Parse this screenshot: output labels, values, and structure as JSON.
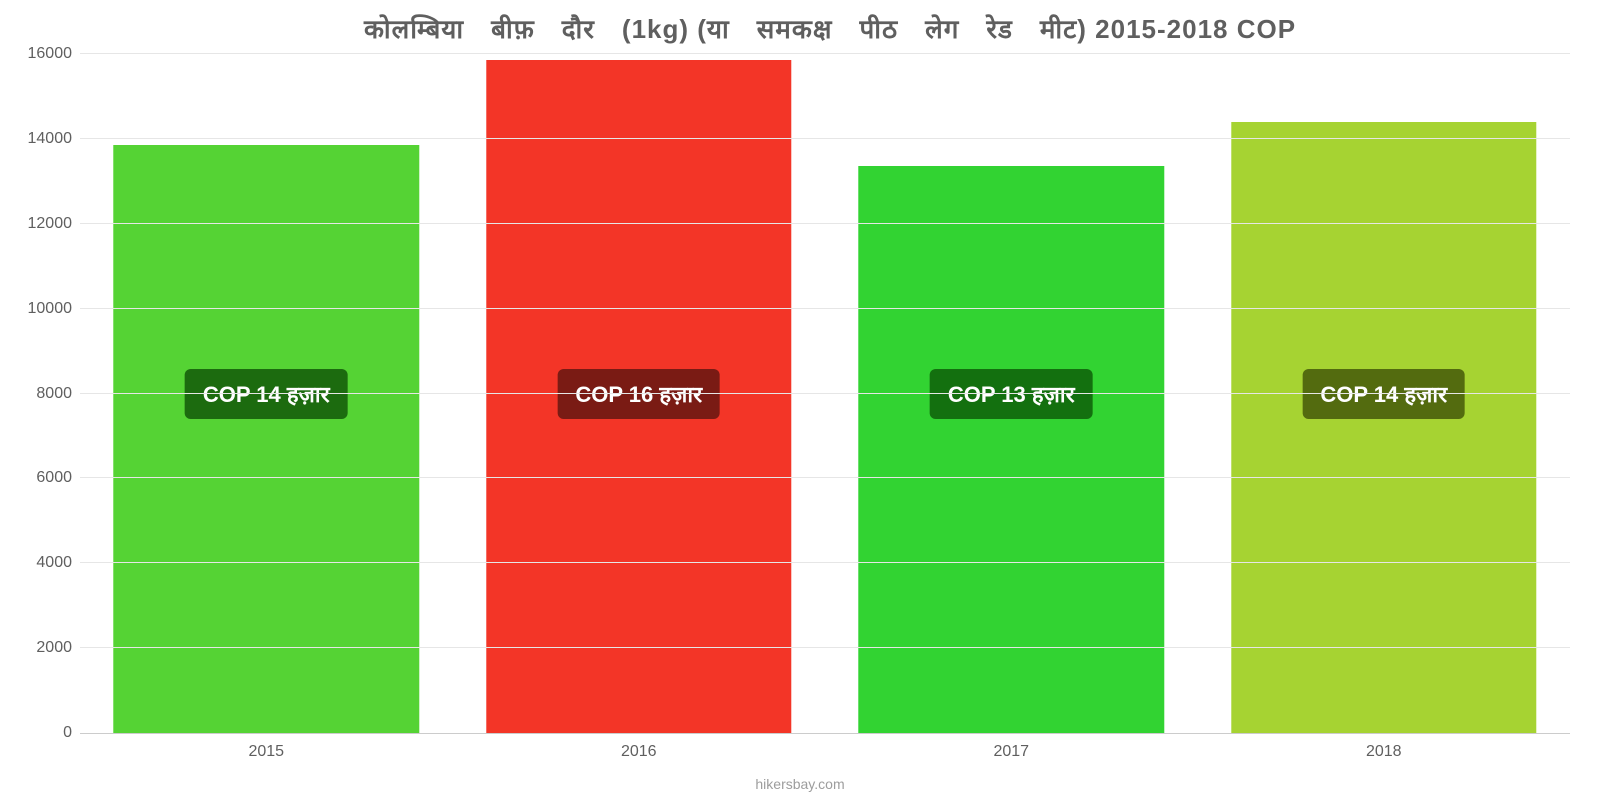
{
  "chart": {
    "type": "bar",
    "title": "कोलम्बिया बीफ़ दौर (1kg) (या समकक्ष पीठ लेग रेड मीट) 2015-2018 COP",
    "title_fontsize": 26,
    "title_color": "#5f5f5f",
    "background_color": "#ffffff",
    "grid_color": "#e6e6e6",
    "axis_color": "#cccccc",
    "tick_label_color": "#5f5f5f",
    "tick_label_fontsize": 16,
    "ylim": [
      0,
      16000
    ],
    "ytick_step": 2000,
    "yticks": [
      0,
      2000,
      4000,
      6000,
      8000,
      10000,
      12000,
      14000,
      16000
    ],
    "categories": [
      "2015",
      "2016",
      "2017",
      "2018"
    ],
    "values": [
      13850,
      15850,
      13350,
      14400
    ],
    "bar_colors": [
      "#55d334",
      "#f33527",
      "#32d332",
      "#a6d332"
    ],
    "bar_labels": [
      "COP 14 हज़ार",
      "COP 16 हज़ार",
      "COP 13 हज़ार",
      "COP 14 हज़ार"
    ],
    "bar_label_bg_colors": [
      "#1c6b0f",
      "#7a1b14",
      "#13700f",
      "#536b0f"
    ],
    "bar_label_text_color": "#ffffff",
    "bar_label_fontsize": 22,
    "bar_width_percent": 82,
    "bar_label_y_percent": 50,
    "attribution": "hikersbay.com",
    "attribution_color": "#9d9d9d",
    "attribution_fontsize": 14
  }
}
